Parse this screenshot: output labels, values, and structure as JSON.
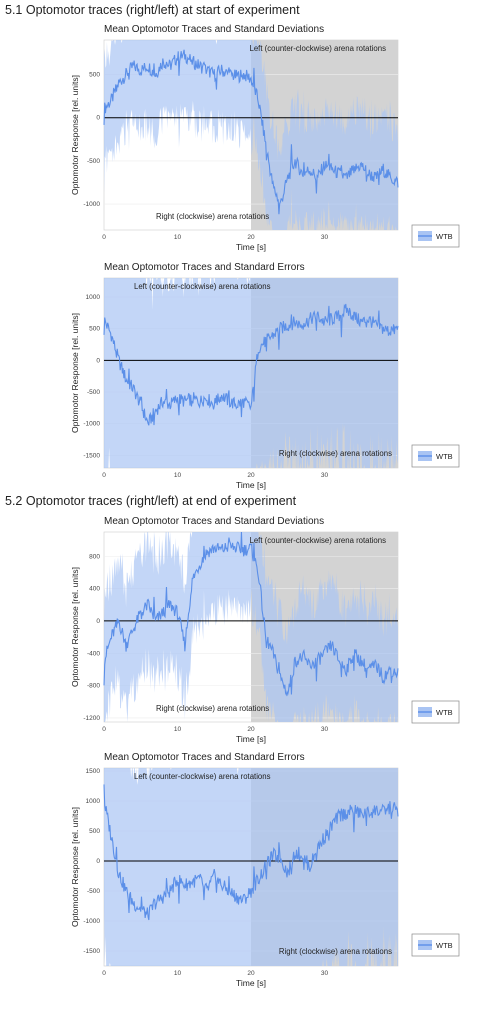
{
  "sections": [
    {
      "title": "5.1 Optomotor traces (right/left) at start of experiment"
    },
    {
      "title": "5.2 Optomotor traces (right/left) at end of experiment"
    }
  ],
  "colors": {
    "line": "#5b8fe8",
    "band": "#a9c4f3",
    "shade": "#d3d3d3",
    "zero": "#000000"
  },
  "chart_data": [
    {
      "type": "line",
      "title": "Mean Optomotor Traces and Standard Deviations",
      "xlabel": "Time [s]",
      "ylabel": "Optomotor Response [rel. units]",
      "xlim": [
        0,
        40
      ],
      "ylim": [
        -1300,
        900
      ],
      "xticks": [
        0,
        10,
        20,
        30
      ],
      "yticks": [
        -1000,
        -500,
        0,
        500
      ],
      "shaded_region": [
        20,
        40
      ],
      "annotation_top": "Left (counter-clockwise) arena rotations",
      "annotation_bottom": "Right (clockwise) arena rotations",
      "legend": "top-right? no: right-bottom",
      "series": [
        {
          "name": "WTB",
          "x": [
            0,
            1,
            2,
            3,
            4,
            5,
            6,
            7,
            8,
            9,
            10,
            11,
            12,
            13,
            14,
            15,
            16,
            17,
            18,
            19,
            20,
            21,
            22,
            23,
            24,
            25,
            26,
            27,
            28,
            29,
            30,
            31,
            32,
            33,
            34,
            35,
            36,
            37,
            38,
            39,
            40
          ],
          "values": [
            100,
            200,
            400,
            500,
            600,
            550,
            600,
            500,
            650,
            600,
            700,
            720,
            650,
            600,
            550,
            500,
            550,
            500,
            480,
            500,
            450,
            200,
            -300,
            -800,
            -1000,
            -700,
            -500,
            -650,
            -600,
            -700,
            -550,
            -600,
            -650,
            -700,
            -600,
            -550,
            -650,
            -700,
            -600,
            -700,
            -750
          ]
        }
      ]
    },
    {
      "type": "line",
      "title": "Mean Optomotor Traces and Standard Errors",
      "xlabel": "Time [s]",
      "ylabel": "Optomotor Response [rel. units]",
      "xlim": [
        0,
        40
      ],
      "ylim": [
        -1700,
        1300
      ],
      "xticks": [
        0,
        10,
        20,
        30
      ],
      "yticks": [
        -1500,
        -1000,
        -500,
        0,
        500,
        1000
      ],
      "shaded_region": [
        20,
        40
      ],
      "annotation_top": "Left (counter-clockwise) arena rotations",
      "annotation_bottom": "Right (clockwise) arena rotations",
      "legend": "right-bottom",
      "series": [
        {
          "name": "WTB",
          "x": [
            0,
            1,
            2,
            3,
            4,
            5,
            6,
            7,
            8,
            9,
            10,
            11,
            12,
            13,
            14,
            15,
            16,
            17,
            18,
            19,
            20,
            21,
            22,
            23,
            24,
            25,
            26,
            27,
            28,
            29,
            30,
            31,
            32,
            33,
            34,
            35,
            36,
            37,
            38,
            39,
            40
          ],
          "values": [
            650,
            400,
            0,
            -300,
            -450,
            -700,
            -1000,
            -800,
            -650,
            -700,
            -600,
            -650,
            -600,
            -650,
            -600,
            -700,
            -550,
            -650,
            -700,
            -650,
            -750,
            200,
            300,
            400,
            500,
            550,
            600,
            550,
            650,
            700,
            600,
            650,
            700,
            800,
            700,
            600,
            650,
            550,
            500,
            450,
            500
          ]
        }
      ]
    },
    {
      "type": "line",
      "title": "Mean Optomotor Traces and Standard Deviations",
      "xlabel": "Time [s]",
      "ylabel": "Optomotor Response [rel. units]",
      "xlim": [
        0,
        40
      ],
      "ylim": [
        -1250,
        1100
      ],
      "xticks": [
        0,
        10,
        20,
        30
      ],
      "yticks": [
        -1200,
        -800,
        -400,
        0,
        400,
        800
      ],
      "shaded_region": [
        20,
        40
      ],
      "annotation_top": "Left (counter-clockwise) arena rotations",
      "annotation_bottom": "Right (clockwise) arena rotations",
      "legend": "right-bottom",
      "series": [
        {
          "name": "WTB",
          "x": [
            0,
            1,
            2,
            3,
            4,
            5,
            6,
            7,
            8,
            9,
            10,
            11,
            12,
            13,
            14,
            15,
            16,
            17,
            18,
            19,
            20,
            21,
            22,
            23,
            24,
            25,
            26,
            27,
            28,
            29,
            30,
            31,
            32,
            33,
            34,
            35,
            36,
            37,
            38,
            39,
            40
          ],
          "values": [
            -500,
            -200,
            0,
            -300,
            -100,
            100,
            200,
            0,
            100,
            200,
            100,
            -300,
            500,
            700,
            850,
            900,
            880,
            920,
            900,
            880,
            900,
            600,
            -200,
            -400,
            -700,
            -900,
            -500,
            -450,
            -550,
            -500,
            -400,
            -300,
            -500,
            -600,
            -400,
            -500,
            -600,
            -550,
            -700,
            -600,
            -650
          ]
        }
      ]
    },
    {
      "type": "line",
      "title": "Mean Optomotor Traces and Standard Errors",
      "xlabel": "Time [s]",
      "ylabel": "Optomotor Response [rel. units]",
      "xlim": [
        0,
        40
      ],
      "ylim": [
        -1750,
        1550
      ],
      "xticks": [
        0,
        10,
        20,
        30
      ],
      "yticks": [
        -1500,
        -1000,
        -500,
        0,
        500,
        1000,
        1500
      ],
      "shaded_region": [
        20,
        40
      ],
      "annotation_top": "Left (counter-clockwise) arena rotations",
      "annotation_bottom": "Right (clockwise) arena rotations",
      "legend": "right-bottom",
      "series": [
        {
          "name": "WTB",
          "x": [
            0,
            1,
            2,
            3,
            4,
            5,
            6,
            7,
            8,
            9,
            10,
            11,
            12,
            13,
            14,
            15,
            16,
            17,
            18,
            19,
            20,
            21,
            22,
            23,
            24,
            25,
            26,
            27,
            28,
            29,
            30,
            31,
            32,
            33,
            34,
            35,
            36,
            37,
            38,
            39,
            40
          ],
          "values": [
            1000,
            400,
            -200,
            -500,
            -700,
            -800,
            -900,
            -700,
            -600,
            -500,
            -300,
            -400,
            -350,
            -300,
            -500,
            -250,
            -400,
            -500,
            -600,
            -650,
            -500,
            -300,
            -100,
            100,
            50,
            -200,
            150,
            100,
            -100,
            200,
            400,
            600,
            750,
            800,
            850,
            780,
            800,
            850,
            820,
            900,
            850
          ]
        }
      ]
    }
  ]
}
